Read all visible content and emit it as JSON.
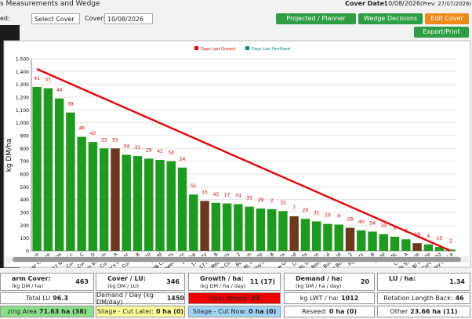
{
  "header": {
    "title": "s Measurements and Wedge",
    "select_label": "ed:",
    "select_value": "Select Cover",
    "cover_label": "Cover:",
    "cover_value": "10/08/2026",
    "cover_date_label": "Cover Date:",
    "cover_date": "10/08/2026",
    "prev": "(Prev: 27/07/2026)",
    "buttons": [
      "Projected / Planner",
      "Wedge Decisions",
      "Edit Cover",
      "Export/Print"
    ]
  },
  "chart_data": {
    "type": "bar",
    "ylabel": "kg DM/ha",
    "legend": [
      {
        "name": "Days Last Grazed",
        "color": "#e00000"
      },
      {
        "name": "Days Last Fertilised",
        "color": "#00897b"
      }
    ],
    "categories": [
      "R m",
      "Lower Wedge",
      "Lilas",
      "17 NRTH c",
      "Curves C",
      "Curves D",
      "Lower Bottom",
      "Curves A",
      "Jimmy's Clover",
      "Curves B",
      "20",
      "SM Rf",
      "PB Carrots",
      "Lower Farm",
      "PB Top",
      "17 Bitty",
      "17 Nrth B",
      "PB Meadows",
      "Jimmy's Clover 2",
      "BL Rush",
      "BL Middle",
      "Jimmy's Rd B",
      "Dans",
      "New Ground",
      "O'Neills",
      "BL Square",
      "Lower Bessie Ld",
      "Bull Field",
      "Lower Bessie 2",
      "Piggery",
      "BS B",
      "BS BF",
      "BL",
      "Cube A",
      "Bl Triangle",
      "Bl Middle",
      "Curves B2",
      "Jimmy's Rd a"
    ],
    "values": [
      1280,
      1270,
      1190,
      1080,
      890,
      850,
      800,
      800,
      750,
      740,
      720,
      710,
      700,
      650,
      440,
      390,
      375,
      370,
      365,
      345,
      330,
      325,
      310,
      270,
      250,
      230,
      210,
      205,
      180,
      160,
      150,
      130,
      110,
      90,
      60,
      50,
      30,
      10
    ],
    "colors": [
      "#1e9a1e",
      "#1e9a1e",
      "#1e9a1e",
      "#1e9a1e",
      "#1e9a1e",
      "#1e9a1e",
      "#1e9a1e",
      "#6b3a1e",
      "#1e9a1e",
      "#1e9a1e",
      "#1e9a1e",
      "#1e9a1e",
      "#1e9a1e",
      "#1e9a1e",
      "#1e9a1e",
      "#6b3a1e",
      "#1e9a1e",
      "#1e9a1e",
      "#1e9a1e",
      "#1e9a1e",
      "#1e9a1e",
      "#1e9a1e",
      "#1e9a1e",
      "#6b3a1e",
      "#1e9a1e",
      "#1e9a1e",
      "#1e9a1e",
      "#1e9a1e",
      "#6b3a1e",
      "#1e9a1e",
      "#1e9a1e",
      "#1e9a1e",
      "#1e9a1e",
      "#1e9a1e",
      "#6b3a1e",
      "#1e9a1e",
      "#1e9a1e",
      "#1e9a1e"
    ],
    "days_last_grazed": [
      41,
      51,
      44,
      38,
      46,
      42,
      33,
      55,
      34,
      31,
      29,
      41,
      54,
      24,
      51,
      15,
      43,
      17,
      34,
      35,
      29,
      2,
      32,
      7,
      20,
      31,
      19,
      6,
      28,
      40,
      54,
      33,
      6,
      3,
      19,
      4,
      15,
      2
    ],
    "target": {
      "color": "#e01010",
      "values": [
        1420,
        0
      ]
    },
    "ylim": [
      0,
      1500
    ],
    "yticks": [
      0,
      100,
      200,
      300,
      400,
      500,
      600,
      700,
      800,
      900,
      {
        "value": 1000,
        "label": "1,000"
      },
      {
        "value": 1100,
        "label": "1,100"
      },
      {
        "value": 1200,
        "label": "1,200"
      },
      {
        "value": 1300,
        "label": "1,300"
      },
      {
        "value": 1400,
        "label": "1,400"
      },
      {
        "value": 1500,
        "label": "1,500"
      }
    ]
  },
  "stats": {
    "row1": [
      {
        "label": "arm Cover:",
        "unit": "(kg DM / ha)",
        "value": "463"
      },
      {
        "label": "Cover / LU:",
        "unit": "(kg DM / LU)",
        "value": "346"
      },
      {
        "label": "Growth / ha:",
        "unit": "(kg DM / ha / day)",
        "value": "11 (17)"
      },
      {
        "label": "Demand / ha:",
        "unit": "(kg DM / ha / day)",
        "value": "20"
      },
      {
        "label": "LU / ha:",
        "unit": "",
        "value": "1.34"
      }
    ],
    "row2": [
      {
        "label": "Total LU",
        "value": "96.3"
      },
      {
        "label": "Demand / Day (kg DM/day)",
        "value": "1450"
      },
      {
        "label": "Days Ahead:",
        "value": "23"
      },
      {
        "label": "kg LWT / ha:",
        "value": "1012"
      },
      {
        "label": "Rotation Length Back:",
        "value": "46"
      }
    ],
    "row3": [
      {
        "label": "zing Area",
        "value": "71.63 ha (38)"
      },
      {
        "label": "Silage - Cut Later:",
        "value": "0 ha (0)"
      },
      {
        "label": "Silage - Cut Now:",
        "value": "0 ha (0)"
      },
      {
        "label": "Reseed:",
        "value": "0 ha (0)"
      },
      {
        "label": "Other",
        "value": "23.66 ha (11)"
      }
    ]
  }
}
